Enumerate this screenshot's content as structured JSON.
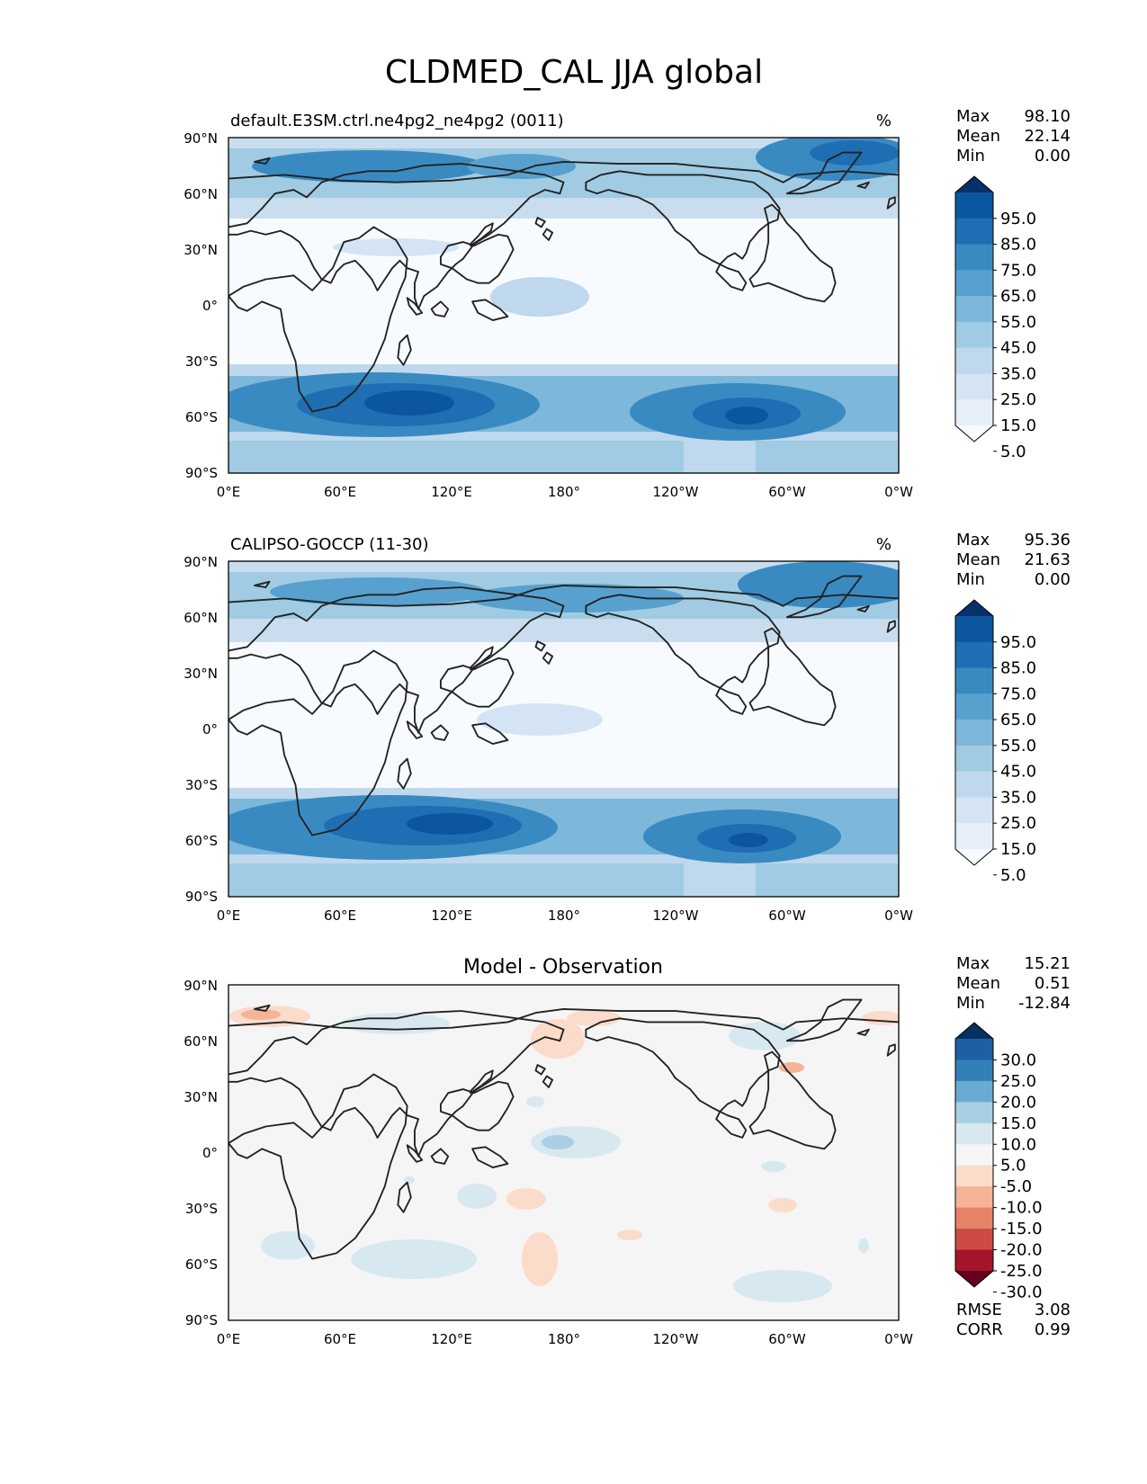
{
  "figure": {
    "title": "CLDMED_CAL JJA global"
  },
  "axes": {
    "lat_ticks": [
      "90°N",
      "60°N",
      "30°N",
      "0°",
      "30°S",
      "60°S",
      "90°S"
    ],
    "lon_ticks": [
      "0°E",
      "60°E",
      "120°E",
      "180°",
      "120°W",
      "60°W",
      "0°W"
    ]
  },
  "panels": [
    {
      "id": "model",
      "title": "default.E3SM.ctrl.ne4pg2_ne4pg2 (0011)",
      "units": "%",
      "stats": [
        {
          "label": "Max",
          "value": "98.10"
        },
        {
          "label": "Mean",
          "value": "22.14"
        },
        {
          "label": "Min",
          "value": "0.00"
        }
      ],
      "colorbar": {
        "labels": [
          "95.0",
          "85.0",
          "75.0",
          "65.0",
          "55.0",
          "45.0",
          "35.0",
          "25.0",
          "15.0",
          "5.0"
        ],
        "colors": [
          "#f7fbff",
          "#e6eff9",
          "#d4e4f4",
          "#bfd8ed",
          "#a0cbe2",
          "#7db8da",
          "#58a1cf",
          "#3a8ac2",
          "#1f6eb3",
          "#0c56a0",
          "#08306b"
        ]
      }
    },
    {
      "id": "obs",
      "title": "CALIPSO-GOCCP (11-30)",
      "units": "%",
      "stats": [
        {
          "label": "Max",
          "value": "95.36"
        },
        {
          "label": "Mean",
          "value": "21.63"
        },
        {
          "label": "Min",
          "value": "0.00"
        }
      ],
      "colorbar": {
        "labels": [
          "95.0",
          "85.0",
          "75.0",
          "65.0",
          "55.0",
          "45.0",
          "35.0",
          "25.0",
          "15.0",
          "5.0"
        ],
        "colors": [
          "#f7fbff",
          "#e6eff9",
          "#d4e4f4",
          "#bfd8ed",
          "#a0cbe2",
          "#7db8da",
          "#58a1cf",
          "#3a8ac2",
          "#1f6eb3",
          "#0c56a0",
          "#08306b"
        ]
      }
    },
    {
      "id": "diff",
      "title": "Model - Observation",
      "units": "",
      "stats": [
        {
          "label": "Max",
          "value": "15.21"
        },
        {
          "label": "Mean",
          "value": "0.51"
        },
        {
          "label": "Min",
          "value": "-12.84"
        }
      ],
      "extra_stats": [
        {
          "label": "RMSE",
          "value": "3.08"
        },
        {
          "label": "CORR",
          "value": "0.99"
        }
      ],
      "colorbar": {
        "labels": [
          "30.0",
          "25.0",
          "20.0",
          "15.0",
          "10.0",
          "5.0",
          "-5.0",
          "-10.0",
          "-15.0",
          "-20.0",
          "-25.0",
          "-30.0"
        ],
        "colors": [
          "#67001f",
          "#a51429",
          "#cc4c44",
          "#e58368",
          "#f4b495",
          "#fbdbc9",
          "#f5f5f5",
          "#d8e8f1",
          "#a8cfe4",
          "#6aabd1",
          "#3380b9",
          "#1d5fa2",
          "#053061"
        ]
      }
    }
  ]
}
